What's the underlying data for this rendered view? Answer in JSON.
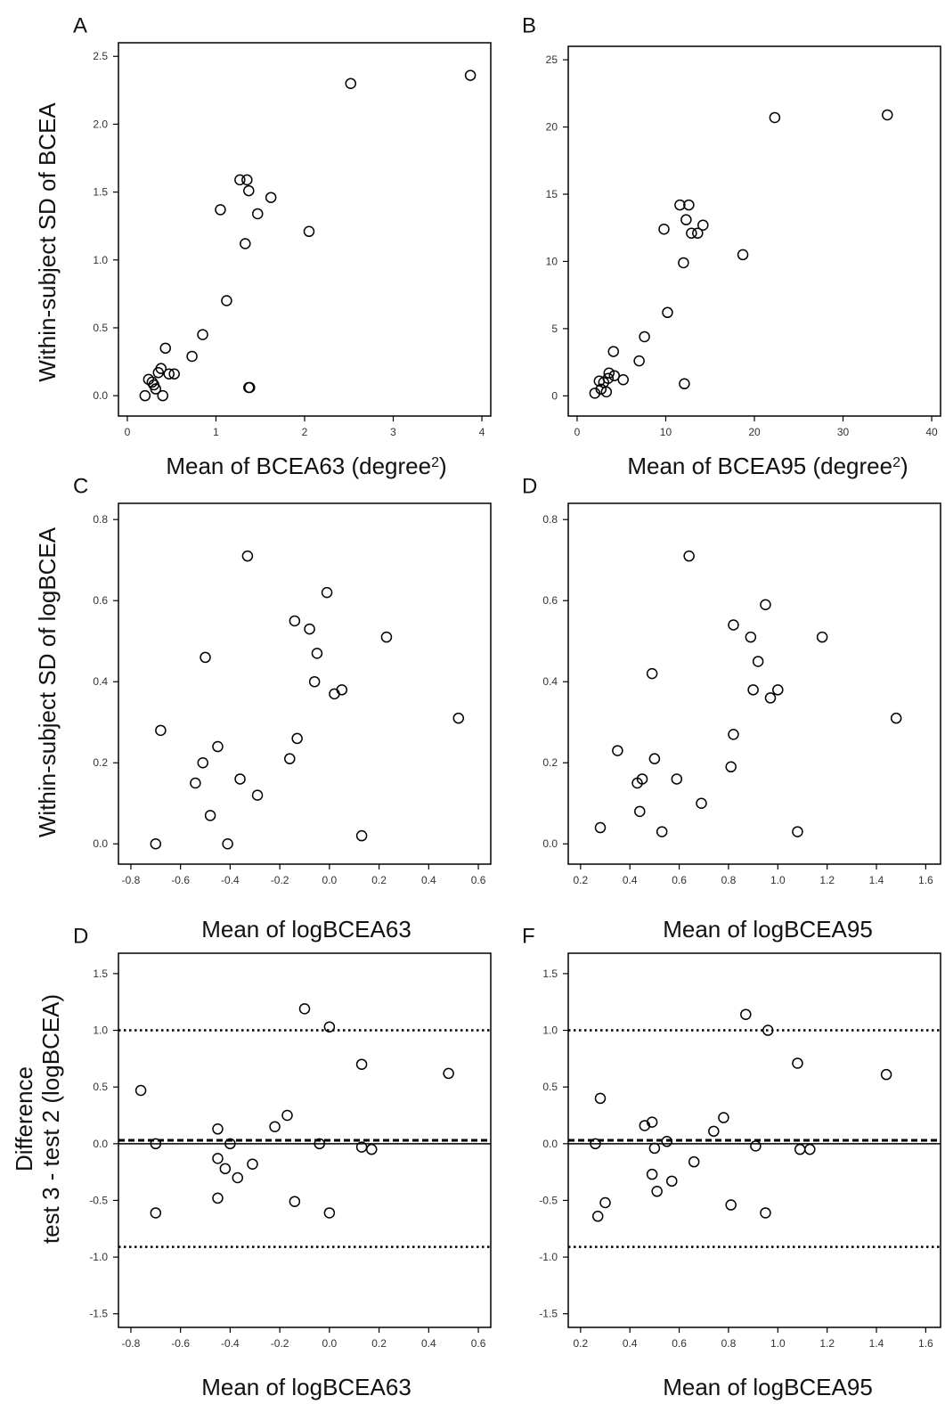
{
  "chart_data": [
    {
      "panel": "A",
      "type": "scatter",
      "xlabel": "Mean of BCEA63 (degree",
      "xlabel_sup": "2",
      "xlabel_end": ")",
      "ylabel": "",
      "xlim": [
        -0.1,
        4.1
      ],
      "ylim": [
        -0.15,
        2.6
      ],
      "xticks": [
        0,
        1,
        2,
        3,
        4
      ],
      "xtick_labels": [
        "0",
        "1",
        "2",
        "3",
        "4"
      ],
      "yticks": [
        0,
        0.5,
        1.0,
        1.5,
        2.0,
        2.5
      ],
      "ytick_labels": [
        "0.0",
        "0.5",
        "1.0",
        "1.5",
        "2.0",
        "2.5"
      ],
      "x": [
        0.2,
        0.24,
        0.28,
        0.3,
        0.32,
        0.35,
        0.38,
        0.4,
        0.43,
        0.47,
        0.53,
        0.73,
        0.85,
        1.05,
        1.12,
        1.27,
        1.33,
        1.35,
        1.37,
        1.38,
        1.47,
        1.62,
        2.05,
        2.52,
        3.87,
        1.37
      ],
      "y": [
        0.0,
        0.12,
        0.1,
        0.08,
        0.05,
        0.17,
        0.2,
        0.0,
        0.35,
        0.16,
        0.16,
        0.29,
        0.45,
        1.37,
        0.7,
        1.59,
        1.12,
        1.59,
        1.51,
        0.06,
        1.34,
        1.46,
        1.21,
        2.3,
        2.36,
        0.06
      ]
    },
    {
      "panel": "B",
      "type": "scatter",
      "xlabel": "Mean of BCEA95 (degree",
      "xlabel_sup": "2",
      "xlabel_end": ")",
      "ylabel": "",
      "xlim": [
        -1,
        41
      ],
      "ylim": [
        -1.5,
        26
      ],
      "xticks": [
        0,
        10,
        20,
        30,
        40
      ],
      "xtick_labels": [
        "0",
        "10",
        "20",
        "30",
        "40"
      ],
      "yticks": [
        0,
        5,
        10,
        15,
        20,
        25
      ],
      "ytick_labels": [
        "0",
        "5",
        "10",
        "15",
        "20",
        "25"
      ],
      "x": [
        2.0,
        2.5,
        2.7,
        3.0,
        3.3,
        3.6,
        3.5,
        4.1,
        4.2,
        5.2,
        7.0,
        7.6,
        9.8,
        10.2,
        11.6,
        12.0,
        12.3,
        12.6,
        12.9,
        13.6,
        14.2,
        18.7,
        22.3,
        35.0,
        12.1
      ],
      "y": [
        0.2,
        1.1,
        0.5,
        1.0,
        0.3,
        1.7,
        1.3,
        3.3,
        1.5,
        1.2,
        2.6,
        4.4,
        12.4,
        6.2,
        14.2,
        9.9,
        13.1,
        14.2,
        12.1,
        12.1,
        12.7,
        10.5,
        20.7,
        20.9,
        0.9
      ]
    },
    {
      "panel": "C",
      "type": "scatter",
      "xlabel": "Mean of logBCEA63",
      "ylabel": "",
      "xlim": [
        -0.85,
        0.65
      ],
      "ylim": [
        -0.05,
        0.84
      ],
      "xticks": [
        -0.8,
        -0.6,
        -0.4,
        -0.2,
        0.0,
        0.2,
        0.4,
        0.6
      ],
      "xtick_labels": [
        "-0.8",
        "-0.6",
        "-0.4",
        "-0.2",
        "0.0",
        "0.2",
        "0.4",
        "0.6"
      ],
      "yticks": [
        0.0,
        0.2,
        0.4,
        0.6,
        0.8
      ],
      "ytick_labels": [
        "0.0",
        "0.2",
        "0.4",
        "0.6",
        "0.8"
      ],
      "x": [
        -0.7,
        -0.68,
        -0.54,
        -0.51,
        -0.5,
        -0.48,
        -0.45,
        -0.41,
        -0.36,
        -0.33,
        -0.29,
        -0.16,
        -0.14,
        -0.13,
        -0.08,
        -0.06,
        -0.05,
        -0.01,
        0.02,
        0.05,
        0.13,
        0.23,
        0.52
      ],
      "y": [
        0.0,
        0.28,
        0.15,
        0.2,
        0.46,
        0.07,
        0.24,
        0.0,
        0.16,
        0.71,
        0.12,
        0.21,
        0.55,
        0.26,
        0.53,
        0.4,
        0.47,
        0.62,
        0.37,
        0.38,
        0.02,
        0.51,
        0.31
      ]
    },
    {
      "panel": "D",
      "type": "scatter",
      "xlabel": "Mean of logBCEA95",
      "ylabel": "",
      "xlim": [
        0.15,
        1.66
      ],
      "ylim": [
        -0.05,
        0.84
      ],
      "xticks": [
        0.2,
        0.4,
        0.6,
        0.8,
        1.0,
        1.2,
        1.4,
        1.6
      ],
      "xtick_labels": [
        "0.2",
        "0.4",
        "0.6",
        "0.8",
        "1.0",
        "1.2",
        "1.4",
        "1.6"
      ],
      "yticks": [
        0.0,
        0.2,
        0.4,
        0.6,
        0.8
      ],
      "ytick_labels": [
        "0.0",
        "0.2",
        "0.4",
        "0.6",
        "0.8"
      ],
      "x": [
        0.28,
        0.35,
        0.43,
        0.44,
        0.45,
        0.49,
        0.5,
        0.53,
        0.59,
        0.64,
        0.69,
        0.81,
        0.82,
        0.82,
        0.89,
        0.9,
        0.92,
        0.95,
        0.97,
        1.0,
        1.08,
        1.18,
        1.48
      ],
      "y": [
        0.04,
        0.23,
        0.15,
        0.08,
        0.16,
        0.42,
        0.21,
        0.03,
        0.16,
        0.71,
        0.1,
        0.19,
        0.54,
        0.27,
        0.51,
        0.38,
        0.45,
        0.59,
        0.36,
        0.38,
        0.03,
        0.51,
        0.31
      ]
    },
    {
      "panel": "D",
      "type": "scatter",
      "xlabel": "Mean of logBCEA63",
      "ylabel": "",
      "xlim": [
        -0.85,
        0.65
      ],
      "ylim": [
        -1.62,
        1.68
      ],
      "xticks": [
        -0.8,
        -0.6,
        -0.4,
        -0.2,
        0.0,
        0.2,
        0.4,
        0.6
      ],
      "xtick_labels": [
        "-0.8",
        "-0.6",
        "-0.4",
        "-0.2",
        "0.0",
        "0.2",
        "0.4",
        "0.6"
      ],
      "yticks": [
        -1.5,
        -1.0,
        -0.5,
        0.0,
        0.5,
        1.0,
        1.5
      ],
      "ytick_labels": [
        "-1.5",
        "-1.0",
        "-0.5",
        "0.0",
        "0.5",
        "1.0",
        "1.5"
      ],
      "reference_lines": [
        {
          "y": 1.0,
          "style": "dotted"
        },
        {
          "y": 0.03,
          "style": "dashed"
        },
        {
          "y": 0.0,
          "style": "solid"
        },
        {
          "y": -0.91,
          "style": "dotted"
        }
      ],
      "x": [
        -0.76,
        -0.7,
        -0.7,
        -0.45,
        -0.45,
        -0.45,
        -0.42,
        -0.4,
        -0.37,
        -0.31,
        -0.22,
        -0.17,
        -0.14,
        -0.1,
        -0.04,
        0.0,
        0.0,
        0.13,
        0.13,
        0.17,
        0.48
      ],
      "y": [
        0.47,
        0.0,
        -0.61,
        0.13,
        -0.13,
        -0.48,
        -0.22,
        0.0,
        -0.3,
        -0.18,
        0.15,
        0.25,
        -0.51,
        1.19,
        0.0,
        1.03,
        -0.61,
        0.7,
        -0.03,
        -0.05,
        0.62
      ]
    },
    {
      "panel": "F",
      "type": "scatter",
      "xlabel": "Mean of logBCEA95",
      "ylabel": "",
      "xlim": [
        0.15,
        1.66
      ],
      "ylim": [
        -1.62,
        1.68
      ],
      "xticks": [
        0.2,
        0.4,
        0.6,
        0.8,
        1.0,
        1.2,
        1.4,
        1.6
      ],
      "xtick_labels": [
        "0.2",
        "0.4",
        "0.6",
        "0.8",
        "1.0",
        "1.2",
        "1.4",
        "1.6"
      ],
      "yticks": [
        -1.5,
        -1.0,
        -0.5,
        0.0,
        0.5,
        1.0,
        1.5
      ],
      "ytick_labels": [
        "-1.5",
        "-1.0",
        "-0.5",
        "0.0",
        "0.5",
        "1.0",
        "1.5"
      ],
      "reference_lines": [
        {
          "y": 1.0,
          "style": "dotted"
        },
        {
          "y": 0.03,
          "style": "dashed"
        },
        {
          "y": 0.0,
          "style": "solid"
        },
        {
          "y": -0.91,
          "style": "dotted"
        }
      ],
      "x": [
        0.26,
        0.27,
        0.28,
        0.3,
        0.46,
        0.49,
        0.5,
        0.49,
        0.51,
        0.55,
        0.57,
        0.66,
        0.74,
        0.78,
        0.81,
        0.87,
        0.91,
        0.95,
        0.96,
        1.08,
        1.09,
        1.13,
        1.44
      ],
      "y": [
        0.0,
        -0.64,
        0.4,
        -0.52,
        0.16,
        0.19,
        -0.04,
        -0.27,
        -0.42,
        0.02,
        -0.33,
        -0.16,
        0.11,
        0.23,
        -0.54,
        1.14,
        -0.02,
        -0.61,
        1.0,
        0.71,
        -0.05,
        -0.05,
        0.61
      ]
    }
  ],
  "row_ylabels": {
    "row1": "Within-subject SD of BCEA",
    "row2": "Within-subject SD of logBCEA",
    "row3_line1": "Difference",
    "row3_line2": "test 3 - test 2 (logBCEA)"
  }
}
